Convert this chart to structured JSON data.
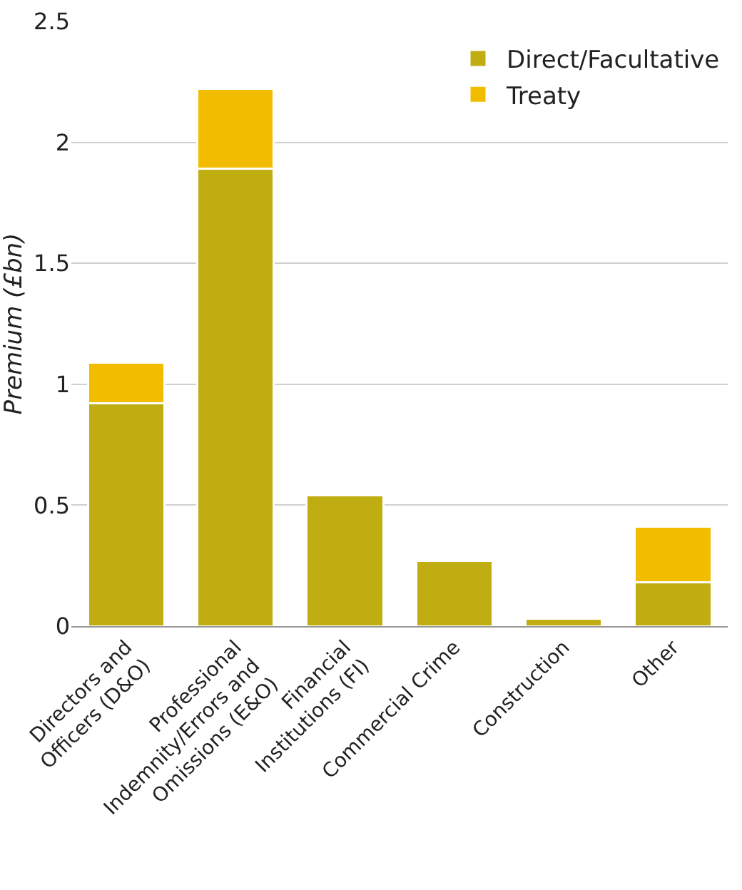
{
  "chart_data": {
    "type": "bar",
    "stacked": true,
    "ylabel": "Premium (£bn)",
    "categories": [
      "Directors and\nOfficers (D&O)",
      "Professional\nIndemnity/Errors and\nOmissions (E&O)",
      "Financial\nInstitutions (FI)",
      "Commercial Crime",
      "Construction",
      "Other"
    ],
    "series": [
      {
        "name": "Direct/Facultative",
        "color": "#bfad12",
        "values": [
          0.92,
          1.89,
          0.54,
          0.27,
          0.03,
          0.18
        ]
      },
      {
        "name": "Treaty",
        "color": "#f2bd00",
        "values": [
          0.17,
          0.33,
          null,
          null,
          null,
          0.23
        ]
      }
    ],
    "ylim": [
      0,
      2.5
    ],
    "yticks": [
      0,
      0.5,
      1,
      1.5,
      2,
      2.5
    ],
    "grid": "y",
    "legend": "top right"
  }
}
